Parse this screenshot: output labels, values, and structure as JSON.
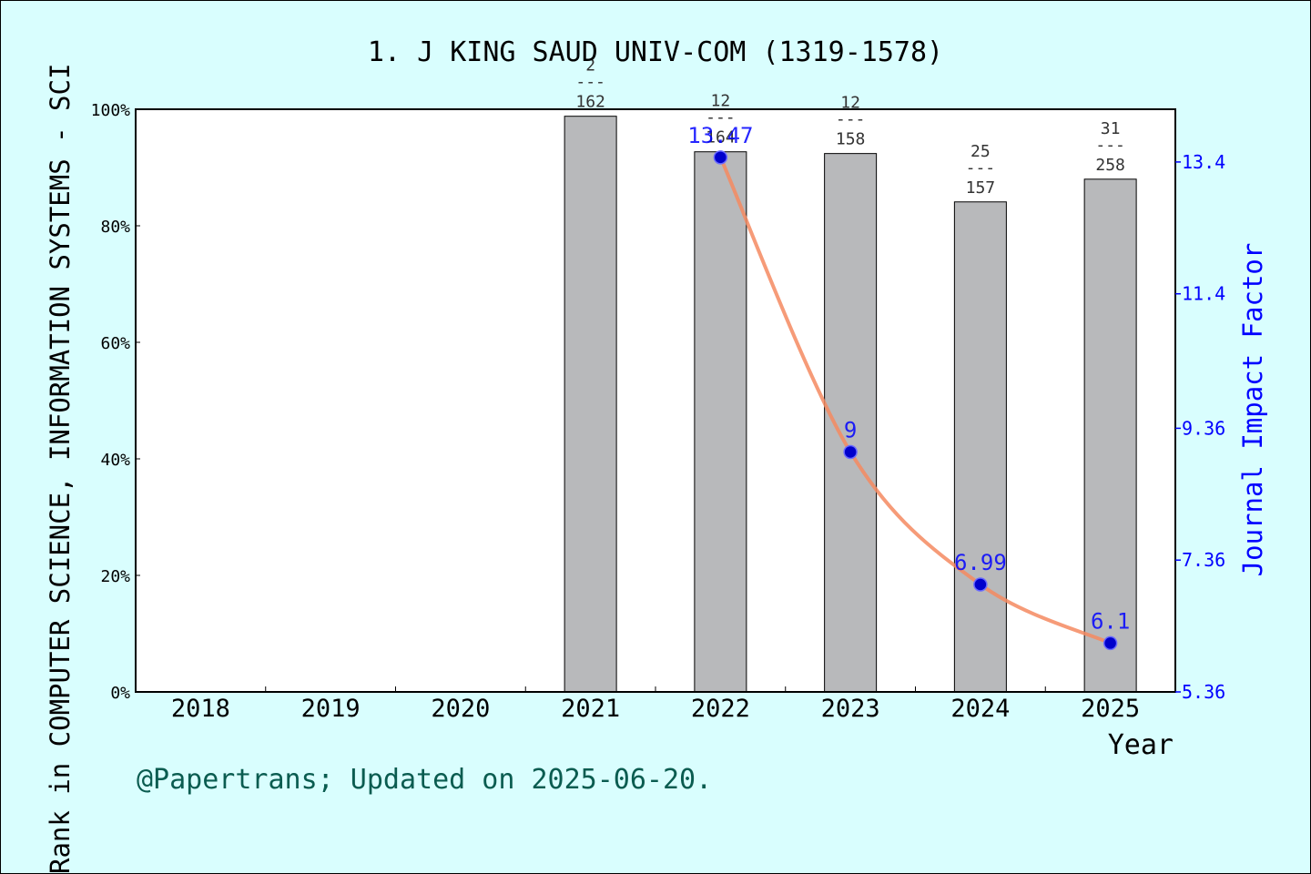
{
  "chart_data": {
    "type": "bar+line",
    "title": "1. J KING SAUD UNIV-COM (1319-1578)",
    "xlabel": "Year",
    "ylabel_left": "Rank in COMPUTER SCIENCE, INFORMATION SYSTEMS - SCI",
    "ylabel_right": "Journal Impact Factor",
    "categories": [
      "2018",
      "2019",
      "2020",
      "2021",
      "2022",
      "2023",
      "2024",
      "2025"
    ],
    "left_axis": {
      "ylim": [
        0,
        100
      ],
      "ticks": [
        0,
        20,
        40,
        60,
        80,
        100
      ],
      "tick_labels": [
        "0%",
        "20%",
        "40%",
        "60%",
        "80%",
        "100%"
      ]
    },
    "right_axis": {
      "ylim": [
        5.36,
        14.2
      ],
      "ticks": [
        5.36,
        7.36,
        9.36,
        11.4,
        13.4
      ],
      "tick_labels": [
        "5.36",
        "7.36",
        "9.36",
        "11.4",
        "13.4"
      ]
    },
    "bars": [
      {
        "year": "2021",
        "value": 98.8,
        "rank": "2",
        "total": "162"
      },
      {
        "year": "2022",
        "value": 92.7,
        "rank": "12",
        "total": "164"
      },
      {
        "year": "2023",
        "value": 92.4,
        "rank": "12",
        "total": "158"
      },
      {
        "year": "2024",
        "value": 84.1,
        "rank": "25",
        "total": "157"
      },
      {
        "year": "2025",
        "value": 88.0,
        "rank": "31",
        "total": "258"
      }
    ],
    "bar_separator": "---",
    "impact_factor": [
      {
        "year": "2022",
        "value": 13.47,
        "label": "13.47"
      },
      {
        "year": "2023",
        "value": 9.0,
        "label": "9"
      },
      {
        "year": "2024",
        "value": 6.99,
        "label": "6.99"
      },
      {
        "year": "2025",
        "value": 6.1,
        "label": "6.1"
      }
    ],
    "colors": {
      "background": "#d9fefe",
      "plot_background": "#ffffff",
      "bar_fill": "#b8b9bb",
      "line": "#f58a60",
      "point": "#0000cc",
      "right_axis": "#0000ff",
      "footer": "#0a5c50"
    }
  },
  "footer": "@Papertrans; Updated on 2025-06-20."
}
